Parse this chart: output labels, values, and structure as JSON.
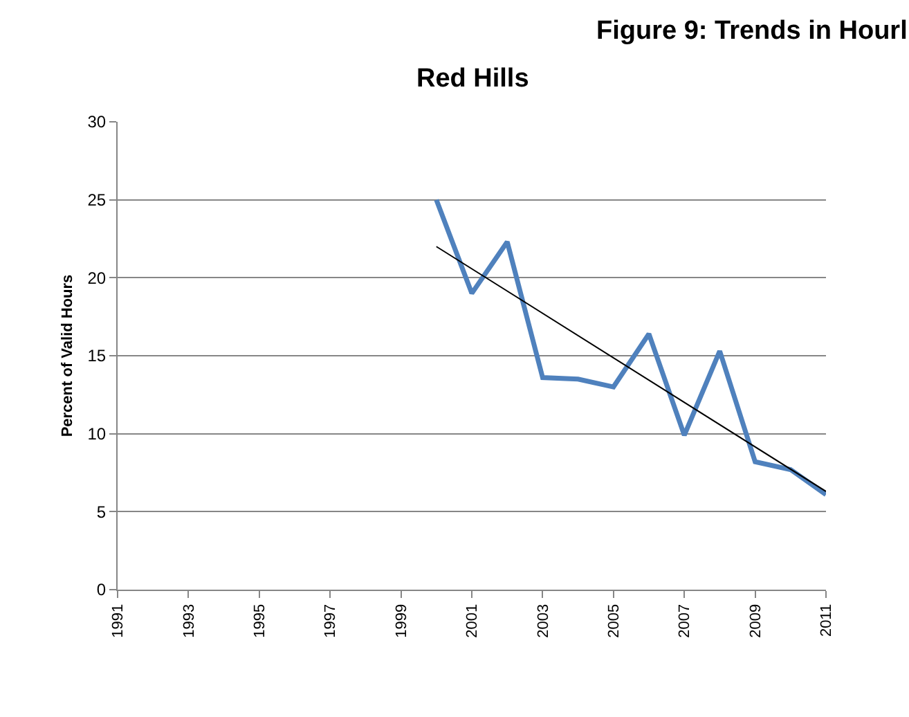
{
  "chart_data": {
    "type": "line",
    "title": "Red Hills",
    "ylabel": "Percent of Valid Hours",
    "annotations": [
      "Figure 9: Trends in Hourl"
    ],
    "x": [
      2000,
      2001,
      2002,
      2003,
      2004,
      2005,
      2006,
      2007,
      2008,
      2009,
      2010,
      2011
    ],
    "series": [
      {
        "color": "#4f81bd",
        "values": [
          25.0,
          19.0,
          22.3,
          13.6,
          13.5,
          13.0,
          16.4,
          9.9,
          15.3,
          8.2,
          7.7,
          6.1
        ]
      },
      {
        "type": "line",
        "color": "#000000",
        "x": [
          2000,
          2011
        ],
        "values": [
          22.0,
          6.3
        ]
      }
    ],
    "xlim": [
      1991,
      2011
    ],
    "xticks": [
      1991,
      1993,
      1995,
      1997,
      1999,
      2001,
      2003,
      2005,
      2007,
      2009,
      2011
    ],
    "ylim": [
      0,
      30
    ],
    "yticks": [
      0,
      5,
      10,
      15,
      20,
      25,
      30
    ],
    "grid": "y",
    "marker": "none",
    "line_style": "solid"
  }
}
